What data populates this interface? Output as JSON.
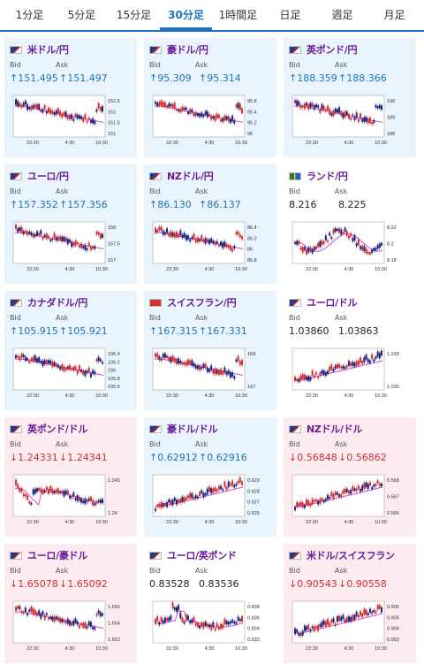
{
  "tabs": [
    "1分足",
    "5分足",
    "15分足",
    "30分足",
    "1時間足",
    "日足",
    "週足",
    "月足"
  ],
  "active_tab": 3,
  "bid_label": "Bid",
  "ask_label": "Ask",
  "x_ticks": [
    "22:30",
    "4:30",
    "10:30"
  ],
  "cards": [
    {
      "pair": "米ドル/円",
      "flag": "us-jp",
      "status": "up",
      "bid": "↑151.495",
      "ask": "↑151.497",
      "y_ticks": [
        "152.5",
        "152",
        "151.5",
        "151"
      ],
      "shape": "down"
    },
    {
      "pair": "豪ドル/円",
      "flag": "au-jp",
      "status": "up",
      "bid": "↑95.309",
      "ask": "↑95.314",
      "y_ticks": [
        "95.6",
        "95.4",
        "95.2",
        "95"
      ],
      "shape": "down"
    },
    {
      "pair": "英ポンド/円",
      "flag": "gb-jp",
      "status": "up",
      "bid": "↑188.359",
      "ask": "↑188.366",
      "y_ticks": [
        "190",
        "189",
        "188"
      ],
      "shape": "down"
    },
    {
      "pair": "ユーロ/円",
      "flag": "eu-jp",
      "status": "up",
      "bid": "↑157.352",
      "ask": "↑157.356",
      "y_ticks": [
        "158",
        "157.5",
        "157"
      ],
      "shape": "down"
    },
    {
      "pair": "NZドル/円",
      "flag": "nz-jp",
      "status": "up",
      "bid": "↑86.130",
      "ask": "↑86.137",
      "y_ticks": [
        "86.4",
        "86.2",
        "86",
        "85.8"
      ],
      "shape": "down"
    },
    {
      "pair": "ランド/円",
      "flag": "za-jp",
      "status": "neutral",
      "bid": "8.216",
      "ask": "8.225",
      "y_ticks": [
        "8.22",
        "8.2",
        "8.18"
      ],
      "shape": "flat"
    },
    {
      "pair": "カナダドル/円",
      "flag": "ca-jp",
      "status": "up",
      "bid": "↑105.915",
      "ask": "↑105.921",
      "y_ticks": [
        "106.4",
        "106.2",
        "106",
        "105.8",
        "105.6"
      ],
      "shape": "down"
    },
    {
      "pair": "スイスフラン/円",
      "flag": "ch-jp",
      "status": "up",
      "bid": "↑167.315",
      "ask": "↑167.331",
      "y_ticks": [
        "168",
        "167"
      ],
      "shape": "down"
    },
    {
      "pair": "ユーロ/ドル",
      "flag": "eu-us",
      "status": "neutral",
      "bid": "1.03860",
      "ask": "1.03863",
      "y_ticks": [
        "1.038",
        "1.036"
      ],
      "shape": "up"
    },
    {
      "pair": "英ポンド/ドル",
      "flag": "gb-us",
      "status": "down",
      "bid": "↓1.24331",
      "ask": "↓1.24341",
      "y_ticks": [
        "1.245",
        "1.24"
      ],
      "shape": "dipflat"
    },
    {
      "pair": "豪ドル/ドル",
      "flag": "au-us",
      "status": "up",
      "bid": "↑0.62912",
      "ask": "↑0.62916",
      "y_ticks": [
        "0.629",
        "0.628",
        "0.627",
        "0.626"
      ],
      "shape": "up"
    },
    {
      "pair": "NZドル/ドル",
      "flag": "nz-us",
      "status": "down",
      "bid": "↓0.56848",
      "ask": "↓0.56862",
      "y_ticks": [
        "0.568",
        "0.567",
        "0.566"
      ],
      "shape": "up"
    },
    {
      "pair": "ユーロ/豪ドル",
      "flag": "eu-au",
      "status": "down",
      "bid": "↓1.65078",
      "ask": "↓1.65092",
      "y_ticks": [
        "1.656",
        "1.654",
        "1.652"
      ],
      "shape": "down"
    },
    {
      "pair": "ユーロ/英ポンド",
      "flag": "eu-gb",
      "status": "neutral",
      "bid": "0.83528",
      "ask": "0.83536",
      "y_ticks": [
        "0.838",
        "0.836",
        "0.834",
        "0.832"
      ],
      "shape": "spike"
    },
    {
      "pair": "米ドル/スイスフラン",
      "flag": "us-ch",
      "status": "down",
      "bid": "↓0.90543",
      "ask": "↓0.90558",
      "y_ticks": [
        "0.906",
        "0.905",
        "0.904",
        "0.903"
      ],
      "shape": "up"
    }
  ]
}
